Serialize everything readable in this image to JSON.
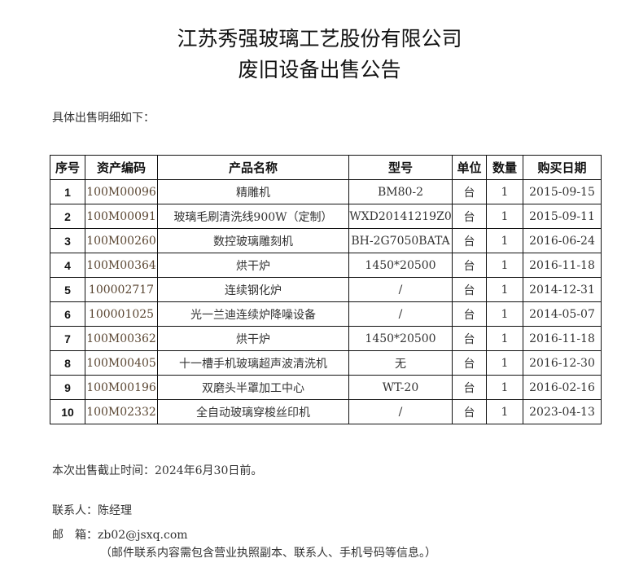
{
  "title": {
    "line1": "江苏秀强玻璃工艺股份有限公司",
    "line2": "废旧设备出售公告"
  },
  "intro": "具体出售明细如下：",
  "table": {
    "headers": [
      "序号",
      "资产编码",
      "产品名称",
      "型号",
      "单位",
      "数量",
      "购买日期"
    ],
    "rows": [
      [
        "1",
        "100M00096",
        "精雕机",
        "BM80-2",
        "台",
        "1",
        "2015-09-15"
      ],
      [
        "2",
        "100M00091",
        "玻璃毛刷清洗线900W（定制）",
        "WXD20141219Z0",
        "台",
        "1",
        "2015-09-11"
      ],
      [
        "3",
        "100M00260",
        "数控玻璃雕刻机",
        "BH-2G7050BATA",
        "台",
        "1",
        "2016-06-24"
      ],
      [
        "4",
        "100M00364",
        "烘干炉",
        "1450*20500",
        "台",
        "1",
        "2016-11-18"
      ],
      [
        "5",
        "100002717",
        "连续钢化炉",
        "/",
        "台",
        "1",
        "2014-12-31"
      ],
      [
        "6",
        "100001025",
        "光一兰迪连续炉降噪设备",
        "/",
        "台",
        "1",
        "2014-05-07"
      ],
      [
        "7",
        "100M00362",
        "烘干炉",
        "1450*20500",
        "台",
        "1",
        "2016-11-18"
      ],
      [
        "8",
        "100M00405",
        "十一槽手机玻璃超声波清洗机",
        "无",
        "台",
        "1",
        "2016-12-30"
      ],
      [
        "9",
        "100M00196",
        "双磨头半罩加工中心",
        "WT-20",
        "台",
        "1",
        "2016-02-16"
      ],
      [
        "10",
        "100M02332",
        "全自动玻璃穿梭丝印机",
        "/",
        "台",
        "1",
        "2023-04-13"
      ]
    ]
  },
  "deadline": "本次出售截止时间：2024年6月30日前。",
  "contact": "联系人：陈经理",
  "email_label": "邮　箱：",
  "email": "zb02@jsxq.com",
  "email_note": "（邮件联系内容需包含营业执照副本、联系人、手机号码等信息。）"
}
